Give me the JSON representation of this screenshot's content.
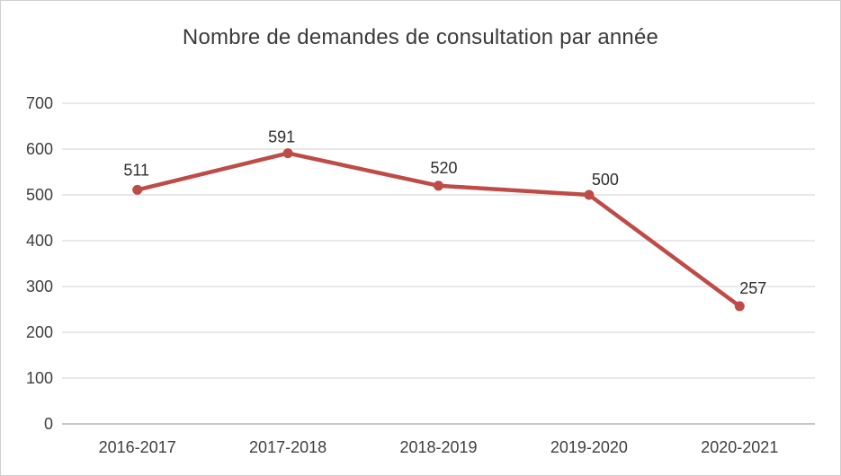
{
  "chart": {
    "title": "Nombre de demandes de consultation par année"
  },
  "chart_data": {
    "type": "line",
    "title": "Nombre de demandes de consultation par année",
    "categories": [
      "2016-2017",
      "2017-2018",
      "2018-2019",
      "2019-2020",
      "2020-2021"
    ],
    "values": [
      511,
      591,
      520,
      500,
      257
    ],
    "data_labels_shown": true,
    "xlabel": "",
    "ylabel": "",
    "ylim": [
      0,
      700
    ],
    "yticks": [
      0,
      100,
      200,
      300,
      400,
      500,
      600,
      700
    ],
    "grid": "horizontal",
    "legend": "none",
    "marker": "circle",
    "colors": {
      "line": "#BE4B48",
      "marker": "#BE4B48",
      "gridline": "#D9D9D9",
      "axis_line": "#BFBFBF",
      "tick_label": "#3F3F3F",
      "data_label": "#2E2E2E",
      "title": "#3A3A3A",
      "frame_border": "#CFCFCF",
      "background": "#FFFFFF"
    }
  }
}
